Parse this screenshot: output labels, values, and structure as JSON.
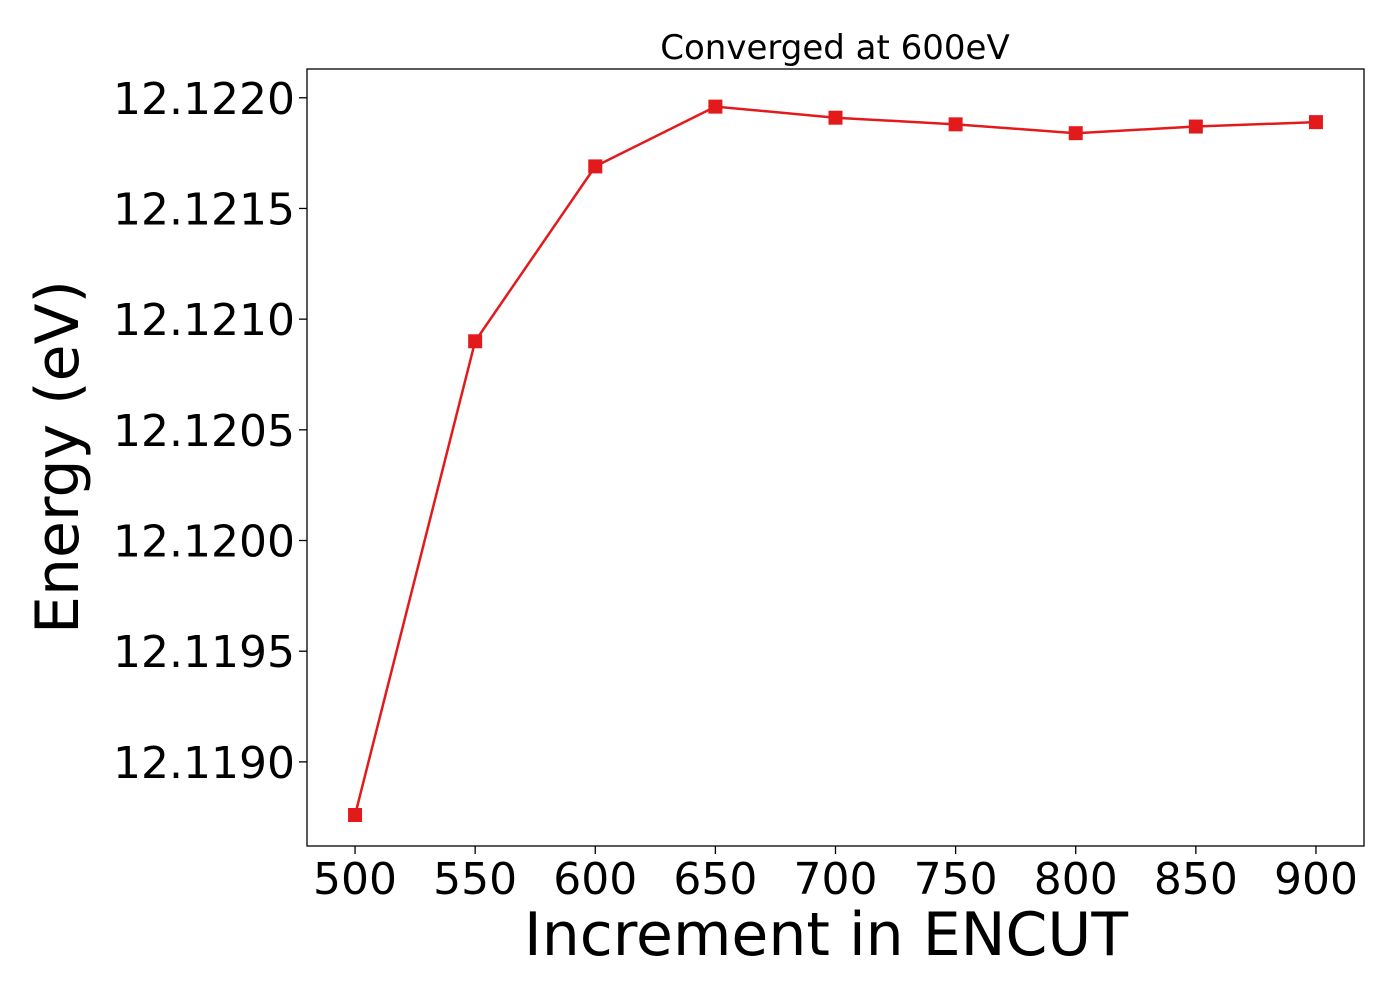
{
  "chart_data": {
    "type": "line",
    "title": "Converged at 600eV",
    "xlabel": "Increment in ENCUT",
    "ylabel": "Energy (eV)",
    "x": [
      500,
      550,
      600,
      650,
      700,
      750,
      800,
      850,
      900
    ],
    "series": [
      {
        "values": [
          12.11876,
          12.1209,
          12.12169,
          12.12196,
          12.12191,
          12.12188,
          12.12184,
          12.12187,
          12.12189
        ],
        "color": "#e31a1c",
        "marker": "square"
      }
    ],
    "xticks": [
      500,
      550,
      600,
      650,
      700,
      750,
      800,
      850,
      900
    ],
    "yticks": [
      12.119,
      12.1195,
      12.12,
      12.1205,
      12.121,
      12.1215,
      12.122
    ],
    "ytick_labels": [
      "12.1190",
      "12.1195",
      "12.1200",
      "12.1205",
      "12.1210",
      "12.1215",
      "12.1220"
    ],
    "xlim": [
      480,
      920
    ],
    "ylim": [
      12.11862,
      12.12213
    ],
    "grid": false,
    "legend": "none"
  }
}
